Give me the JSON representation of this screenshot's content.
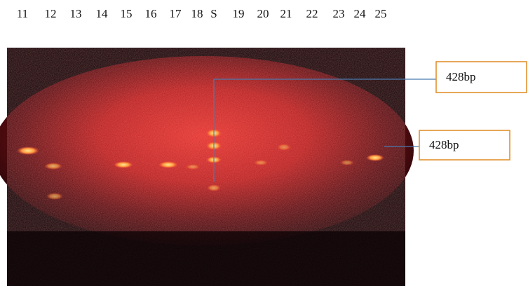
{
  "lanes": [
    "11",
    "12",
    "13",
    "14",
    "15",
    "16",
    "17",
    "18",
    "S",
    "19",
    "20",
    "21",
    "22",
    "23",
    "24",
    "25"
  ],
  "annotations": [
    {
      "label": "428bp"
    },
    {
      "label": "428bp"
    }
  ]
}
